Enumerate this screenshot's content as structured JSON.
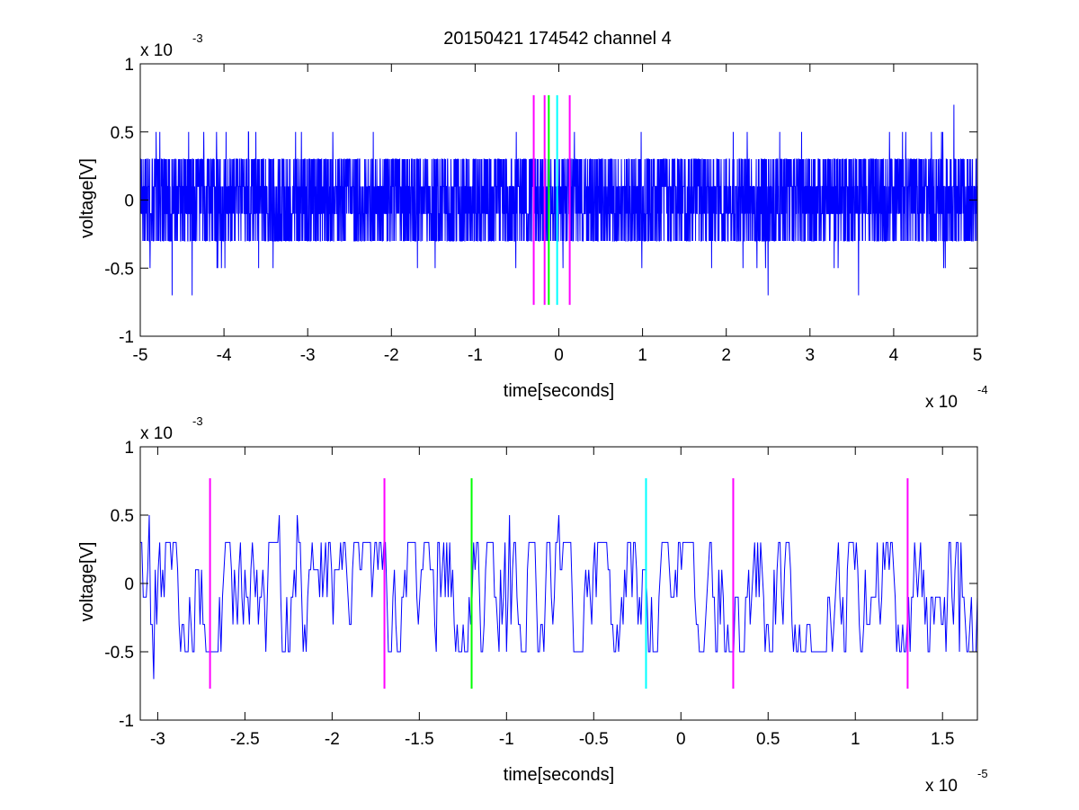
{
  "figure": {
    "title": "20150421 174542 channel 4"
  },
  "chart_data": [
    {
      "type": "line",
      "title": "20150421 174542 channel 4",
      "xlabel": "time[seconds]",
      "ylabel": "voltage[V]",
      "x_multiplier": "x 10",
      "x_exponent": "-4",
      "y_multiplier": "x 10",
      "y_exponent": "-3",
      "xlim": [
        -5,
        5
      ],
      "ylim": [
        -1,
        1
      ],
      "x_ticks": [
        "-5",
        "-4",
        "-3",
        "-2",
        "-1",
        "0",
        "1",
        "2",
        "3",
        "4",
        "5"
      ],
      "y_ticks": [
        "1",
        "0.5",
        "0",
        "-0.5",
        "-1"
      ],
      "grid": false,
      "series": [
        {
          "color": "#0000ff",
          "description_values": "dense quantized noise; levels in units of 1e-3 V",
          "levels": [
            -0.7,
            -0.5,
            -0.3,
            -0.1,
            0.1,
            0.3,
            0.5,
            0.7
          ],
          "dense_band": [
            -0.3,
            0.3
          ],
          "spikes": [
            {
              "x": 4.72,
              "y": 0.7
            },
            {
              "x": -4.62,
              "y": -0.7
            },
            {
              "x": -4.38,
              "y": -0.7
            },
            {
              "x": 2.5,
              "y": -0.7
            },
            {
              "x": 3.58,
              "y": -0.7
            }
          ]
        }
      ],
      "markers": [
        {
          "x": -0.3,
          "color": "#ff00ff"
        },
        {
          "x": -0.17,
          "color": "#ff00ff"
        },
        {
          "x": -0.12,
          "color": "#00ff00"
        },
        {
          "x": -0.02,
          "color": "#00ffff"
        },
        {
          "x": 0.13,
          "color": "#ff00ff"
        }
      ],
      "marker_range": [
        -0.77,
        0.77
      ]
    },
    {
      "type": "line",
      "xlabel": "time[seconds]",
      "ylabel": "voltage[V]",
      "x_multiplier": "x 10",
      "x_exponent": "-5",
      "y_multiplier": "x 10",
      "y_exponent": "-3",
      "xlim": [
        -3.1,
        1.7
      ],
      "ylim": [
        -1,
        1
      ],
      "x_ticks": [
        "-3",
        "-2.5",
        "-2",
        "-1.5",
        "-1",
        "-0.5",
        "0",
        "0.5",
        "1",
        "1.5"
      ],
      "y_ticks": [
        "1",
        "0.5",
        "0",
        "-0.5",
        "-1"
      ],
      "grid": false,
      "series": [
        {
          "color": "#0000ff",
          "levels": [
            -0.7,
            -0.5,
            -0.3,
            -0.1,
            0.1,
            0.3,
            0.5
          ],
          "notable_points": [
            {
              "x": -3.05,
              "y": 0.5
            },
            {
              "x": -3.02,
              "y": -0.7
            },
            {
              "x": -2.3,
              "y": 0.5
            },
            {
              "x": -2.2,
              "y": 0.5
            },
            {
              "x": -1.4,
              "y": -0.5
            },
            {
              "x": -1.0,
              "y": -0.5
            },
            {
              "x": -0.98,
              "y": 0.5
            },
            {
              "x": -0.7,
              "y": 0.5
            },
            {
              "x": 1.6,
              "y": -0.5
            }
          ]
        }
      ],
      "markers": [
        {
          "x": -2.7,
          "color": "#ff00ff"
        },
        {
          "x": -1.7,
          "color": "#ff00ff"
        },
        {
          "x": -1.2,
          "color": "#00ff00"
        },
        {
          "x": -0.2,
          "color": "#00ffff"
        },
        {
          "x": 0.3,
          "color": "#ff00ff"
        },
        {
          "x": 1.3,
          "color": "#ff00ff"
        }
      ],
      "marker_range": [
        -0.77,
        0.77
      ]
    }
  ]
}
